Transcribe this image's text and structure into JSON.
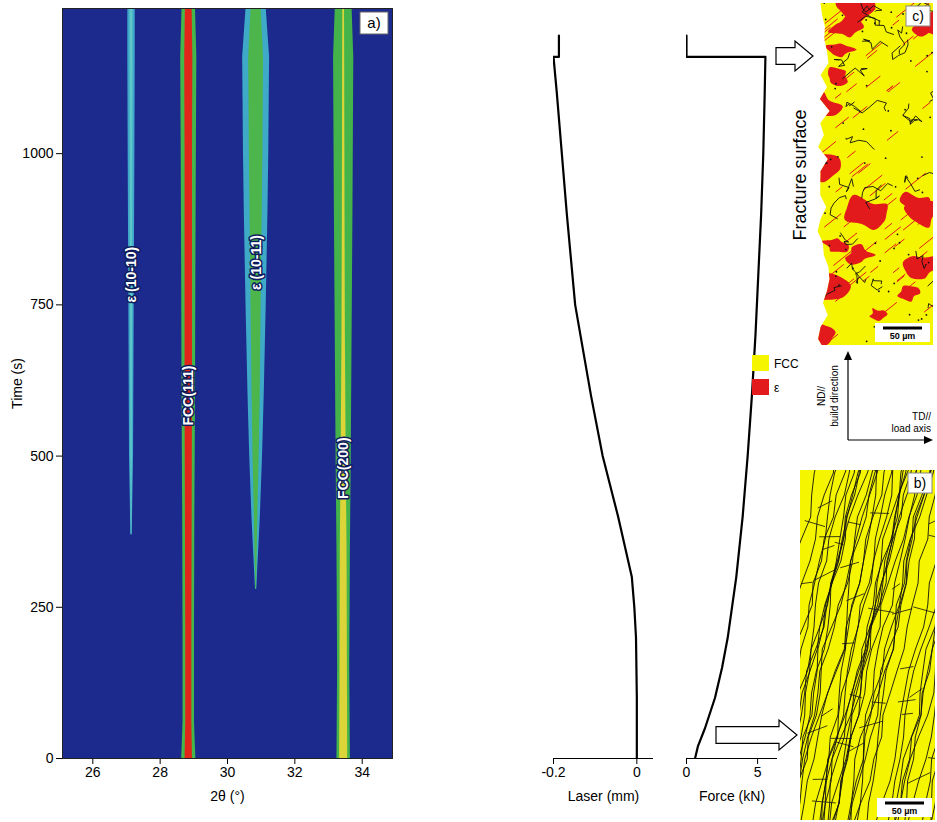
{
  "chart_data": [
    {
      "type": "heatmap",
      "title": "a)",
      "xlabel": "2θ (°)",
      "ylabel": "Time (s)",
      "xlim": [
        25.1,
        34.9
      ],
      "xticks": [
        26,
        28,
        30,
        32,
        34
      ],
      "ylim": [
        0,
        1240
      ],
      "yticks": [
        0,
        250,
        500,
        750,
        1000
      ],
      "series": [
        {
          "name": "ε (10-10)",
          "x": 27.15,
          "colors": [
            "#3fa7c9",
            "#5cc6c8"
          ],
          "time": [
            370,
            500,
            750,
            1000,
            1160,
            1240
          ],
          "width": [
            0.04,
            0.12,
            0.16,
            0.2,
            0.22,
            0.22
          ],
          "core_width": [
            0.02,
            0.05,
            0.07,
            0.08,
            0.09,
            0.09
          ],
          "label_time": 800
        },
        {
          "name": "FCC(111)",
          "x": 28.85,
          "colors": [
            "#45b649",
            "#e0251b"
          ],
          "time": [
            0,
            60,
            200,
            400,
            600,
            800,
            1000,
            1160,
            1240
          ],
          "width": [
            0.42,
            0.34,
            0.34,
            0.36,
            0.4,
            0.42,
            0.45,
            0.48,
            0.4
          ],
          "core_width": [
            0.22,
            0.18,
            0.18,
            0.2,
            0.22,
            0.22,
            0.22,
            0.24,
            0.2
          ],
          "label_time": 600
        },
        {
          "name": "ε (10-11)",
          "x": 30.85,
          "colors": [
            "#3fa9c8",
            "#4cb54b"
          ],
          "time": [
            280,
            400,
            500,
            600,
            750,
            900,
            1000,
            1160,
            1240
          ],
          "width": [
            0.04,
            0.25,
            0.38,
            0.48,
            0.6,
            0.7,
            0.75,
            0.8,
            0.6
          ],
          "core_width": [
            0.02,
            0.1,
            0.18,
            0.24,
            0.3,
            0.36,
            0.4,
            0.44,
            0.3
          ],
          "label_time": 820
        },
        {
          "name": "FCC(200)",
          "x": 33.45,
          "colors": [
            "#44b44a",
            "#dcd53a"
          ],
          "time": [
            0,
            150,
            350,
            500,
            700,
            900,
            1160,
            1240
          ],
          "width": [
            0.4,
            0.36,
            0.4,
            0.45,
            0.5,
            0.55,
            0.6,
            0.5
          ],
          "core_width": [
            0.24,
            0.22,
            0.2,
            0.15,
            0.1,
            0.08,
            0.06,
            0.05
          ],
          "label_time": 480
        }
      ]
    },
    {
      "type": "line",
      "xlabel": "Laser (mm)",
      "xlim": [
        -0.2,
        0.04
      ],
      "xticks": [
        -0.2,
        0
      ],
      "ylim": [
        0,
        1240
      ],
      "tick_labels": "x",
      "color": "#000000",
      "y": [
        0,
        100,
        200,
        250,
        300,
        400,
        500,
        600,
        750,
        900,
        1000,
        1100,
        1160,
        1160,
        1195
      ],
      "x": [
        0,
        0,
        -0.002,
        -0.006,
        -0.012,
        -0.045,
        -0.082,
        -0.11,
        -0.148,
        -0.168,
        -0.18,
        -0.192,
        -0.2,
        -0.187,
        -0.187
      ]
    },
    {
      "type": "line",
      "xlabel": "Force (kN)",
      "xlim": [
        0,
        6.4
      ],
      "xticks": [
        0,
        5
      ],
      "ylim": [
        0,
        1240
      ],
      "tick_labels": "x",
      "color": "#000000",
      "y": [
        0,
        20,
        50,
        100,
        150,
        200,
        250,
        300,
        400,
        500,
        600,
        700,
        800,
        900,
        1000,
        1100,
        1160,
        1160,
        1195
      ],
      "x": [
        0.6,
        0.8,
        1.3,
        2.0,
        2.5,
        2.9,
        3.2,
        3.5,
        3.95,
        4.3,
        4.6,
        4.85,
        5.05,
        5.25,
        5.4,
        5.5,
        5.55,
        0,
        0
      ]
    }
  ],
  "maps": {
    "legend": [
      {
        "name": "FCC",
        "color": "#f5f500"
      },
      {
        "name": "ε",
        "color": "#e31a1c"
      }
    ],
    "directions": {
      "vertical": "ND// build direction",
      "horizontal": "TD// load axis"
    },
    "panels": [
      {
        "label": "b)",
        "scale_bar": "50 µm"
      },
      {
        "label": "c)",
        "scale_bar": "50 µm",
        "side_label": "Fracture surface"
      }
    ]
  }
}
